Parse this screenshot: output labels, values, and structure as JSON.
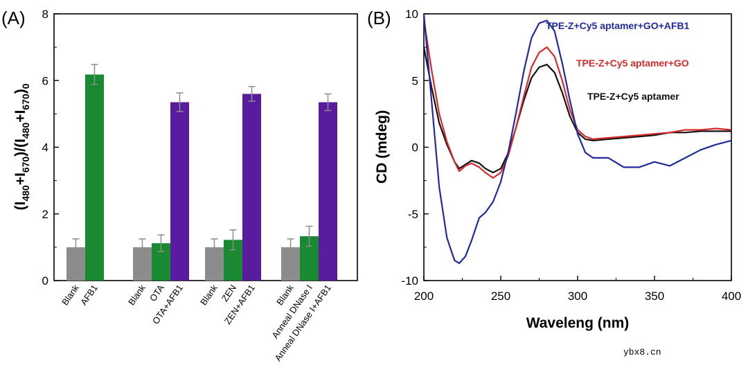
{
  "panelA": {
    "label": "(A)",
    "ylabel_parts": [
      "(I",
      "480",
      "+I",
      "670",
      ")/(I",
      "480",
      "+I",
      "670",
      ")",
      "0"
    ],
    "yticks": [
      "0",
      "2",
      "4",
      "6",
      "8"
    ]
  },
  "panelB": {
    "label": "(B)",
    "yticks": [
      "-10",
      "-5",
      "0",
      "5",
      "10"
    ],
    "xticks": [
      "200",
      "250",
      "300",
      "350",
      "400"
    ]
  },
  "watermark": "ybx8.cn",
  "chart_data": [
    {
      "type": "bar",
      "title": "",
      "ylabel": "(I480+I670)/(I480+I670)0",
      "ylim": [
        0,
        8
      ],
      "yticks": [
        0,
        2,
        4,
        6,
        8
      ],
      "colors": {
        "gray": "#8c8c8c",
        "green": "#1a8a32",
        "purple": "#5a1c9e"
      },
      "groups": [
        {
          "bars": [
            {
              "label": "Blank",
              "value": 1.0,
              "error": 0.25,
              "color": "gray"
            },
            {
              "label": "AFB1",
              "value": 6.18,
              "error": 0.3,
              "color": "green"
            }
          ]
        },
        {
          "bars": [
            {
              "label": "Blank",
              "value": 1.0,
              "error": 0.25,
              "color": "gray"
            },
            {
              "label": "OTA",
              "value": 1.12,
              "error": 0.25,
              "color": "green"
            },
            {
              "label": "OTA+AFB1",
              "value": 5.35,
              "error": 0.28,
              "color": "purple"
            }
          ]
        },
        {
          "bars": [
            {
              "label": "Blank",
              "value": 1.0,
              "error": 0.25,
              "color": "gray"
            },
            {
              "label": "ZEN",
              "value": 1.22,
              "error": 0.3,
              "color": "green"
            },
            {
              "label": "ZEN+AFB1",
              "value": 5.6,
              "error": 0.22,
              "color": "purple"
            }
          ]
        },
        {
          "bars": [
            {
              "label": "Blank",
              "value": 1.0,
              "error": 0.25,
              "color": "gray"
            },
            {
              "label": "Anneal DNase I",
              "value": 1.33,
              "error": 0.3,
              "color": "green"
            },
            {
              "label": "Anneal DNase I+AFB1",
              "value": 5.35,
              "error": 0.25,
              "color": "purple"
            }
          ]
        }
      ]
    },
    {
      "type": "line",
      "title": "",
      "xlabel": "Waveleng (nm)",
      "ylabel": "CD (mdeg)",
      "xlim": [
        200,
        400
      ],
      "ylim": [
        -10,
        10
      ],
      "xticks": [
        200,
        250,
        300,
        350,
        400
      ],
      "yticks": [
        -10,
        -5,
        0,
        5,
        10
      ],
      "series": [
        {
          "name": "TPE-Z+Cy5 aptamer",
          "color": "#111111",
          "x": [
            200,
            205,
            210,
            215,
            220,
            223,
            227,
            231,
            236,
            240,
            245,
            250,
            255,
            260,
            265,
            270,
            275,
            280,
            285,
            290,
            295,
            300,
            305,
            310,
            320,
            330,
            340,
            350,
            360,
            370,
            380,
            390,
            400
          ],
          "y": [
            7.5,
            4.5,
            1.8,
            0.2,
            -1.1,
            -1.6,
            -1.3,
            -1.0,
            -1.2,
            -1.6,
            -1.9,
            -1.6,
            -0.4,
            1.5,
            3.5,
            5.2,
            6.0,
            6.2,
            5.6,
            4.1,
            2.3,
            1.1,
            0.6,
            0.5,
            0.6,
            0.7,
            0.8,
            0.9,
            1.1,
            1.1,
            1.2,
            1.2,
            1.2
          ]
        },
        {
          "name": "TPE-Z+Cy5 aptamer+GO",
          "color": "#d42a2a",
          "x": [
            200,
            205,
            210,
            215,
            220,
            223,
            227,
            231,
            236,
            240,
            245,
            250,
            255,
            260,
            265,
            270,
            275,
            280,
            285,
            290,
            295,
            300,
            305,
            310,
            320,
            330,
            340,
            350,
            360,
            370,
            380,
            390,
            400
          ],
          "y": [
            9.6,
            5.8,
            2.5,
            0.4,
            -1.1,
            -1.8,
            -1.4,
            -1.2,
            -1.5,
            -1.9,
            -2.3,
            -1.9,
            -0.6,
            1.5,
            3.8,
            6.0,
            7.1,
            7.5,
            6.8,
            5.0,
            2.8,
            1.3,
            0.8,
            0.6,
            0.7,
            0.8,
            0.9,
            1.0,
            1.1,
            1.3,
            1.3,
            1.4,
            1.3
          ]
        },
        {
          "name": "TPE-Z+Cy5 aptamer+GO+AFB1",
          "color": "#1f2a9e",
          "x": [
            200,
            205,
            210,
            215,
            220,
            223,
            227,
            231,
            236,
            240,
            245,
            250,
            255,
            260,
            265,
            270,
            275,
            280,
            285,
            290,
            295,
            300,
            305,
            310,
            320,
            330,
            340,
            350,
            360,
            370,
            380,
            390,
            400
          ],
          "y": [
            10.0,
            3.5,
            -3.0,
            -6.8,
            -8.5,
            -8.7,
            -8.2,
            -7.0,
            -5.3,
            -4.9,
            -4.1,
            -2.6,
            -0.3,
            2.6,
            5.7,
            8.2,
            9.3,
            9.5,
            8.7,
            6.3,
            3.5,
            1.0,
            -0.4,
            -0.8,
            -0.8,
            -1.5,
            -1.5,
            -1.1,
            -1.4,
            -0.8,
            -0.2,
            0.2,
            0.5
          ]
        }
      ]
    }
  ]
}
